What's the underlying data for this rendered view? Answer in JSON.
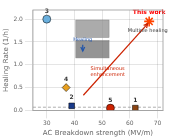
{
  "chart_data": {
    "type": "scatter",
    "xlabel": "AC Breakdown strength (MV/m)",
    "ylabel": "Healing Rate (1/h)",
    "xlim": [
      25,
      72
    ],
    "ylim": [
      0,
      2.2
    ],
    "xticks": [
      30,
      40,
      50,
      60,
      70
    ],
    "yticks": [
      {
        "value": 0,
        "label": "0.0"
      },
      0.5,
      {
        "value": 1,
        "label": "1.0"
      },
      1.5,
      {
        "value": 2,
        "label": "2.0"
      }
    ],
    "grid": true,
    "points": [
      {
        "label": "1",
        "x": 62,
        "y": 0.05,
        "color": "#8B4513",
        "marker": "square"
      },
      {
        "label": "2",
        "x": 39,
        "y": 0.1,
        "color": "#1a3a8a",
        "marker": "square"
      },
      {
        "label": "3",
        "x": 30,
        "y": 2.0,
        "color": "#6ab0de",
        "marker": "circle"
      },
      {
        "label": "4",
        "x": 37,
        "y": 0.5,
        "color": "#e8a020",
        "marker": "diamond"
      },
      {
        "label": "5",
        "x": 53,
        "y": 0.05,
        "color": "#cc2200",
        "marker": "circle"
      }
    ],
    "this_work": {
      "label": "This work",
      "x": 67,
      "y": 1.95,
      "color": "#ff4400",
      "marker": "star",
      "label_color": "#ff0000"
    },
    "reference_line": {
      "y": 0.07,
      "color": "#808080",
      "line_style": "dashed"
    },
    "arrows": [
      {
        "from": [
          42,
          0.25
        ],
        "to": [
          66.5,
          1.9
        ],
        "color": "#cc2200"
      },
      {
        "from": [
          43,
          1.55
        ],
        "to": [
          43,
          1.3
        ],
        "color": "#2255aa"
      }
    ],
    "annotations": [
      {
        "text": "Multiple healing",
        "x": 66.5,
        "y": 1.75,
        "color": "#333333"
      },
      {
        "text": "Healing",
        "x": 43,
        "y": 1.55,
        "color": "#2255aa"
      },
      {
        "text": "Simultaneous\nenhancement",
        "x": 52,
        "y": 0.85,
        "color": "#cc2200"
      }
    ],
    "insets": [
      {
        "x": 40.5,
        "y": 1.6,
        "width": 12,
        "height": 0.38,
        "color": "#888888"
      },
      {
        "x": 40.5,
        "y": 1.15,
        "width": 12,
        "height": 0.38,
        "color": "#666666"
      }
    ]
  }
}
